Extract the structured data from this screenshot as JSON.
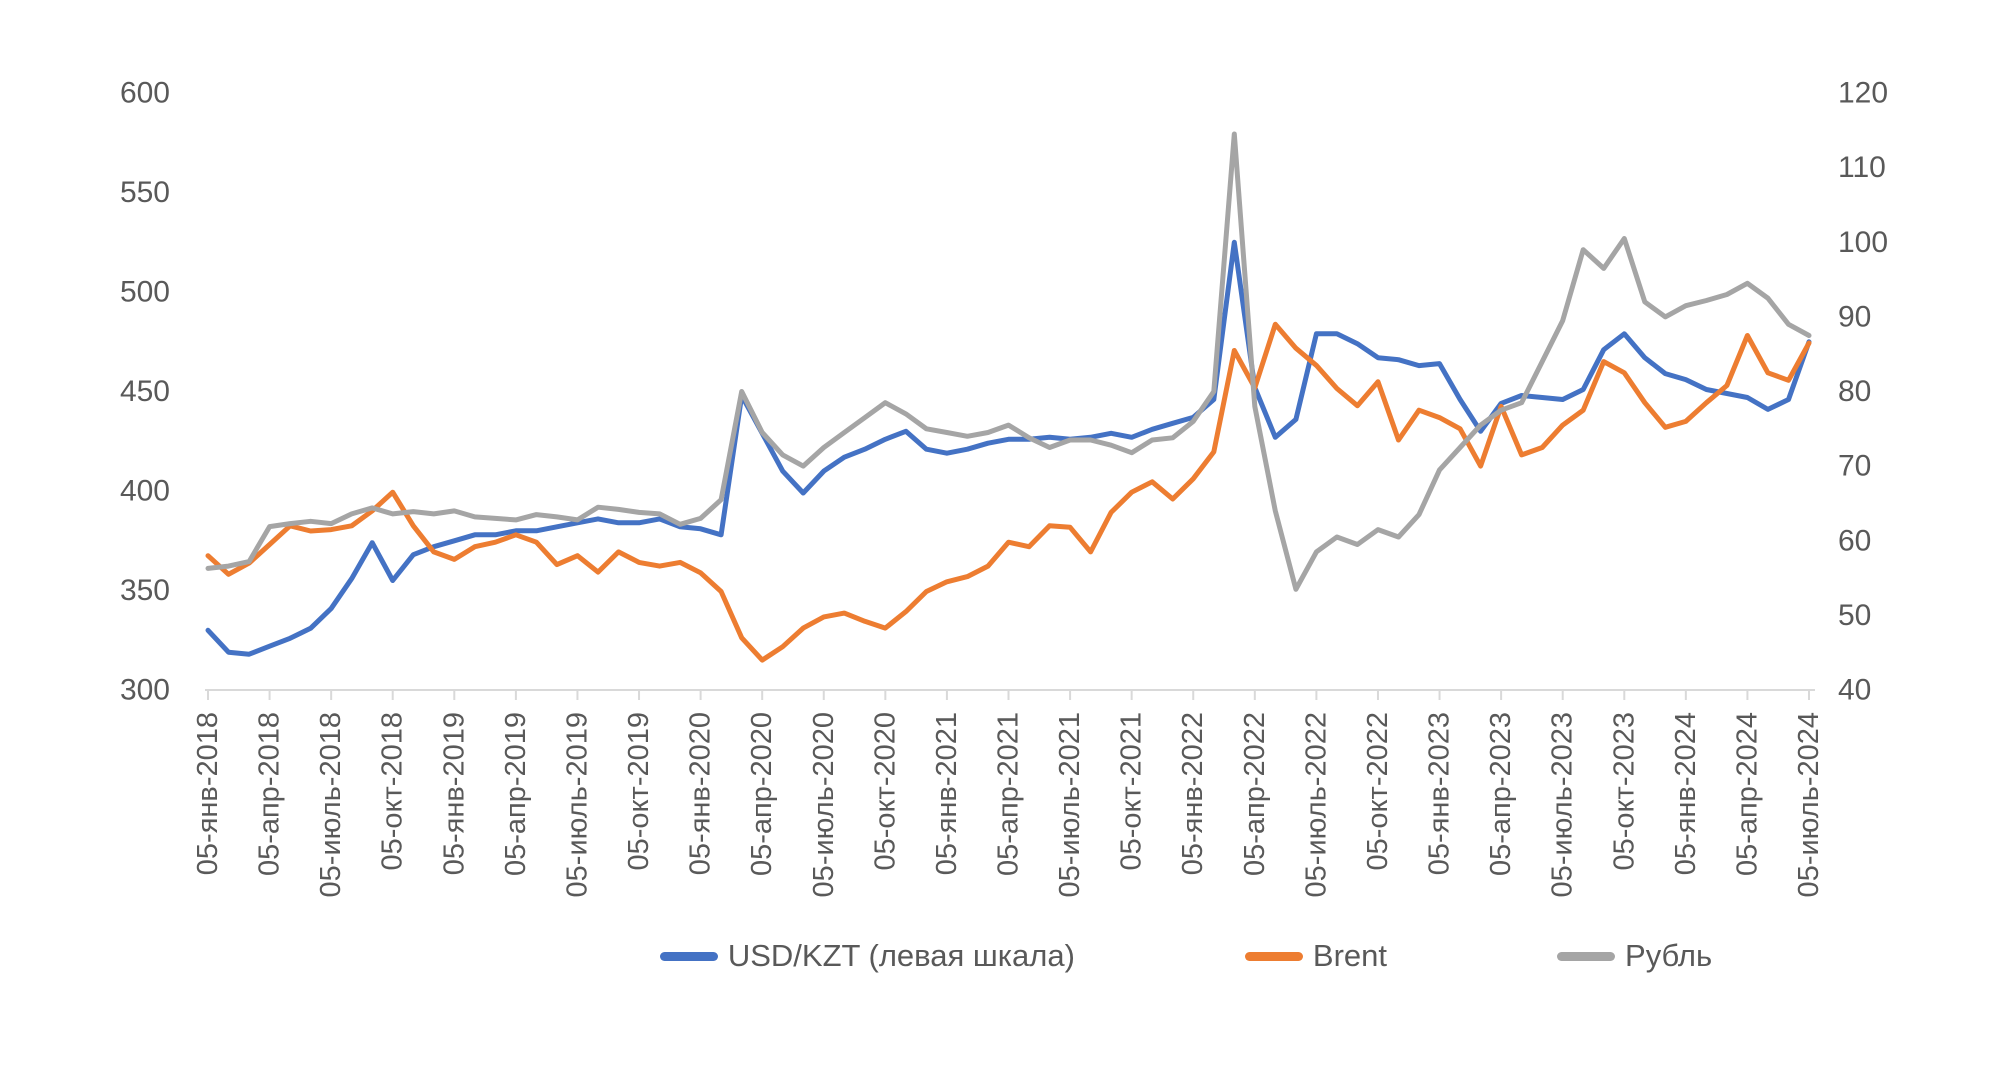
{
  "chart_data": {
    "type": "line",
    "title": "",
    "grid": false,
    "legend_position": "bottom",
    "x_axis": {
      "tick_labels": [
        "05-янв-2018",
        "05-апр-2018",
        "05-июль-2018",
        "05-окт-2018",
        "05-янв-2019",
        "05-апр-2019",
        "05-июль-2019",
        "05-окт-2019",
        "05-янв-2020",
        "05-апр-2020",
        "05-июль-2020",
        "05-окт-2020",
        "05-янв-2021",
        "05-апр-2021",
        "05-июль-2021",
        "05-окт-2021",
        "05-янв-2022",
        "05-апр-2022",
        "05-июль-2022",
        "05-окт-2022",
        "05-янв-2023",
        "05-апр-2023",
        "05-июль-2023",
        "05-окт-2023",
        "05-янв-2024",
        "05-апр-2024",
        "05-июль-2024"
      ],
      "tick_positions_months": [
        0,
        3,
        6,
        9,
        12,
        15,
        18,
        21,
        24,
        27,
        30,
        33,
        36,
        39,
        42,
        45,
        48,
        51,
        54,
        57,
        60,
        63,
        66,
        69,
        72,
        75,
        78
      ],
      "months_total": 78
    },
    "y_left": {
      "min": 300,
      "max": 600,
      "step": 50,
      "ticks": [
        300,
        350,
        400,
        450,
        500,
        550,
        600
      ]
    },
    "y_right": {
      "min": 40,
      "max": 120,
      "step": 10,
      "ticks": [
        40,
        50,
        60,
        70,
        80,
        90,
        100,
        110,
        120
      ]
    },
    "series": [
      {
        "name": "USD/KZT (левая шкала)",
        "axis": "left",
        "color": "#4472C4",
        "values": [
          330,
          319,
          318,
          322,
          326,
          331,
          341,
          356,
          374,
          355,
          368,
          372,
          375,
          378,
          378,
          380,
          380,
          382,
          384,
          386,
          384,
          384,
          386,
          382,
          381,
          378,
          448,
          429,
          410,
          399,
          410,
          417,
          421,
          426,
          430,
          421,
          419,
          421,
          424,
          426,
          426,
          427,
          426,
          427,
          429,
          427,
          431,
          434,
          437,
          446,
          525,
          452,
          427,
          436,
          479,
          479,
          474,
          467,
          466,
          463,
          464,
          446,
          430,
          444,
          448,
          447,
          446,
          451,
          471,
          479,
          467,
          459,
          456,
          451,
          449,
          447,
          441,
          446,
          475
        ]
      },
      {
        "name": "Brent",
        "axis": "right",
        "color": "#ED7D31",
        "values": [
          58,
          55.5,
          57,
          59.5,
          62,
          61.3,
          61.5,
          62,
          64,
          66.5,
          62,
          58.5,
          57.5,
          59.2,
          59.8,
          60.8,
          59.8,
          56.8,
          58,
          55.8,
          58.5,
          57.1,
          56.6,
          57.1,
          55.7,
          53.2,
          47,
          44,
          45.8,
          48.3,
          49.8,
          50.3,
          49.2,
          48.3,
          50.5,
          53.2,
          54.5,
          55.2,
          56.6,
          59.8,
          59.2,
          62,
          61.8,
          58.5,
          63.8,
          66.5,
          67.9,
          65.6,
          68.3,
          71.9,
          85.5,
          80.5,
          89,
          85.8,
          83.5,
          80.4,
          78.1,
          81.3,
          73.5,
          77.5,
          76.5,
          75,
          70,
          78,
          71.5,
          72.5,
          75.5,
          77.5,
          84,
          82.5,
          78.5,
          75.2,
          76,
          78.5,
          80.8,
          87.5,
          82.5,
          81.5,
          86.5
        ]
      },
      {
        "name": "Рубль",
        "axis": "right",
        "color": "#A5A5A5",
        "values": [
          56.3,
          56.6,
          57.2,
          61.9,
          62.3,
          62.6,
          62.3,
          63.6,
          64.4,
          63.6,
          63.9,
          63.6,
          64,
          63.2,
          63,
          62.8,
          63.5,
          63.2,
          62.8,
          64.5,
          64.2,
          63.8,
          63.6,
          62.2,
          63,
          65.5,
          80,
          74.5,
          71.5,
          70,
          72.5,
          74.5,
          76.5,
          78.5,
          77,
          75,
          74.5,
          74,
          74.5,
          75.5,
          73.8,
          72.5,
          73.5,
          73.5,
          72.8,
          71.8,
          73.5,
          73.8,
          76,
          80,
          114.5,
          78,
          64,
          53.5,
          58.5,
          60.5,
          59.5,
          61.5,
          60.5,
          63.5,
          69.5,
          72.5,
          75.5,
          77.5,
          78.5,
          84,
          89.5,
          99,
          96.5,
          100.5,
          92,
          90,
          91.5,
          92.2,
          93,
          94.5,
          92.5,
          89,
          87.5
        ]
      }
    ],
    "colors": {
      "axis_line": "#D9D9D9",
      "tick_text": "#595959",
      "background": "#FFFFFF"
    }
  }
}
